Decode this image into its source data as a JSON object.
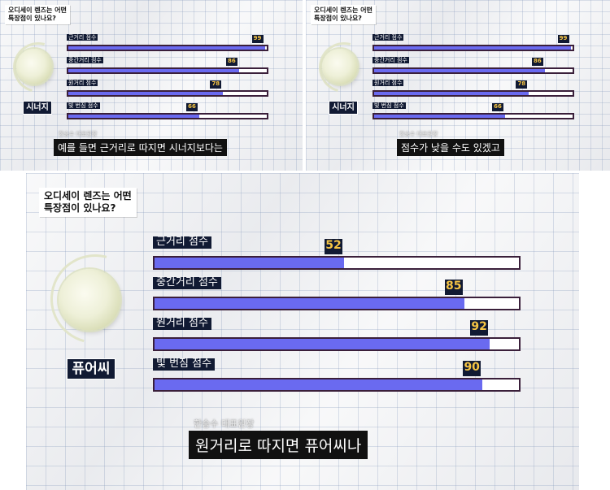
{
  "panels": [
    {
      "question": "오디세이 렌즈는 어떤\n특장점이 있나요?",
      "lens_name": "시너지",
      "speaker": "한승수 대표원장",
      "subtitle": "예를 들면 근거리로 따지면 시너지보다는",
      "chart_data": {
        "type": "bar",
        "orientation": "horizontal",
        "categories": [
          "근거리 점수",
          "중간거리 점수",
          "원거리 점수",
          "빛 번짐 점수"
        ],
        "values": [
          99,
          86,
          78,
          66
        ],
        "xlim": [
          0,
          100
        ]
      }
    },
    {
      "question": "오디세이 렌즈는 어떤\n특장점이 있나요?",
      "lens_name": "시너지",
      "speaker": "한승수 대표원장",
      "subtitle": "점수가 낮을 수도 있겠고",
      "chart_data": {
        "type": "bar",
        "orientation": "horizontal",
        "categories": [
          "근거리 점수",
          "중간거리 점수",
          "원거리 점수",
          "빛 번짐 점수"
        ],
        "values": [
          99,
          86,
          78,
          66
        ],
        "xlim": [
          0,
          100
        ]
      }
    },
    {
      "question": "오디세이 렌즈는 어떤\n특장점이 있나요?",
      "lens_name": "퓨어씨",
      "speaker": "한승수 대표원장",
      "subtitle": "원거리로 따지면 퓨어씨나",
      "chart_data": {
        "type": "bar",
        "orientation": "horizontal",
        "categories": [
          "근거리 점수",
          "중간거리 점수",
          "원거리 점수",
          "빛 번짐 점수"
        ],
        "values": [
          52,
          85,
          92,
          90
        ],
        "xlim": [
          0,
          100
        ]
      }
    }
  ],
  "colors": {
    "bar_fill": "#6a6af0",
    "bar_track": "#ffffff",
    "bar_border": "#3a1f3a",
    "label_bg": "#111a33",
    "value_text": "#f6c544",
    "subtitle_bg": "#111111"
  }
}
